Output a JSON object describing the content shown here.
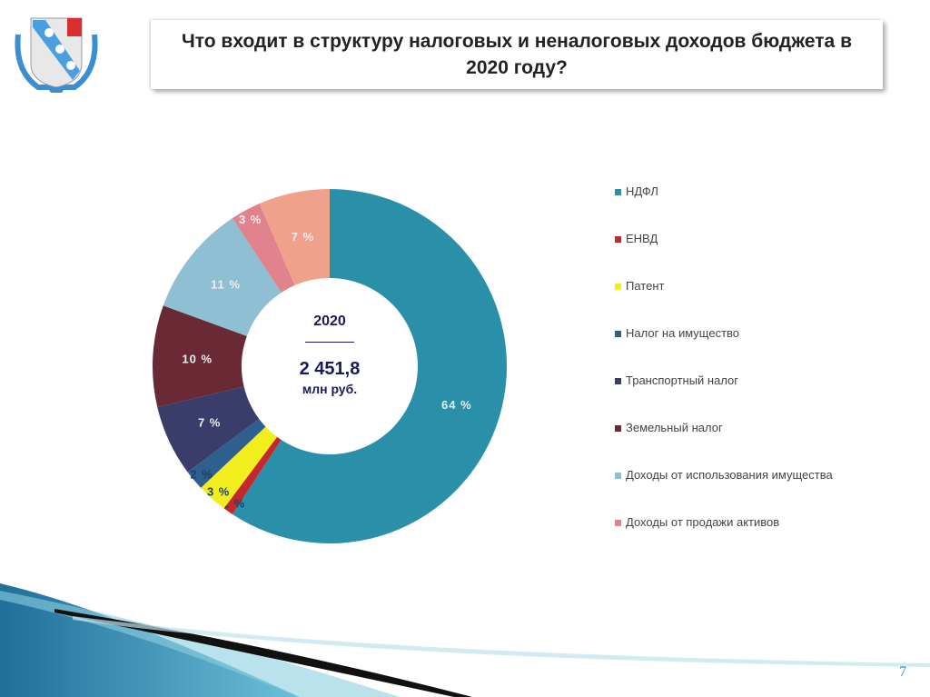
{
  "header": {
    "title": "Что входит в структуру налоговых и неналоговых доходов бюджета в 2020 году?"
  },
  "page_number": "7",
  "chart_data": {
    "type": "pie",
    "variant": "donut",
    "title": "Что входит в структуру налоговых и неналоговых доходов бюджета в 2020 году?",
    "center": {
      "year": "2020",
      "total": "2 451,8",
      "unit": "млн руб."
    },
    "slices": [
      {
        "name": "НДФЛ",
        "value": 64,
        "label": "64 %",
        "color": "#2a8fa8"
      },
      {
        "name": "ЕНВД",
        "value": 1,
        "label": "1 %",
        "color": "#c4282d"
      },
      {
        "name": "Патент",
        "value": 3,
        "label": "3 %",
        "color": "#f2ee1e"
      },
      {
        "name": "Налог на имущество",
        "value": 2,
        "label": "2 %",
        "color": "#2f5f8e"
      },
      {
        "name": "Транспортный налог",
        "value": 7,
        "label": "7 %",
        "color": "#3a3c69"
      },
      {
        "name": "Земельный налог",
        "value": 10,
        "label": "10 %",
        "color": "#6a2a35"
      },
      {
        "name": "Доходы от использования имущества",
        "value": 11,
        "label": "11 %",
        "color": "#8fbfd3"
      },
      {
        "name": "Доходы от продажи активов",
        "value": 3,
        "label": "3 %",
        "color": "#e0838c"
      },
      {
        "name": "",
        "value": 7,
        "label": "7 %",
        "color": "#f0a18c"
      }
    ],
    "legend": {
      "placement": "right",
      "entries": [
        {
          "label": "НДФЛ",
          "color": "#2a8fa8"
        },
        {
          "label": "ЕНВД",
          "color": "#c4282d"
        },
        {
          "label": "Патент",
          "color": "#f2ee1e"
        },
        {
          "label": "Налог на имущество",
          "color": "#2f5f8e"
        },
        {
          "label": "Транспортный налог",
          "color": "#3a3c69"
        },
        {
          "label": "Земельный налог",
          "color": "#6a2a35"
        },
        {
          "label": "Доходы от использования имущества",
          "color": "#8fbfd3"
        },
        {
          "label": "Доходы от продажи активов",
          "color": "#e0838c"
        }
      ]
    }
  }
}
